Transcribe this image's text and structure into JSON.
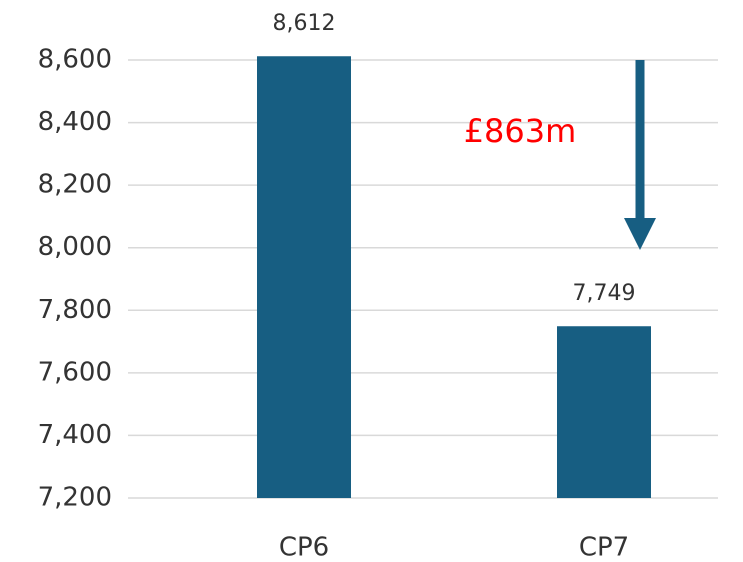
{
  "chart_data": {
    "type": "bar",
    "categories": [
      "CP6",
      "CP7"
    ],
    "values": [
      8612,
      7749
    ],
    "value_labels": [
      "8,612",
      "7,749"
    ],
    "color": "#175e82",
    "ylim": [
      7200,
      8600
    ],
    "yticks": [
      {
        "value": 7200,
        "label": "7,200"
      },
      {
        "value": 7400,
        "label": "7,400"
      },
      {
        "value": 7600,
        "label": "7,600"
      },
      {
        "value": 7800,
        "label": "7,800"
      },
      {
        "value": 8000,
        "label": "8,000"
      },
      {
        "value": 8200,
        "label": "8,200"
      },
      {
        "value": 8400,
        "label": "8,400"
      },
      {
        "value": 8600,
        "label": "8,600"
      }
    ],
    "grid": true,
    "annotation": "£863m",
    "annotation_color": "#ff0000"
  }
}
